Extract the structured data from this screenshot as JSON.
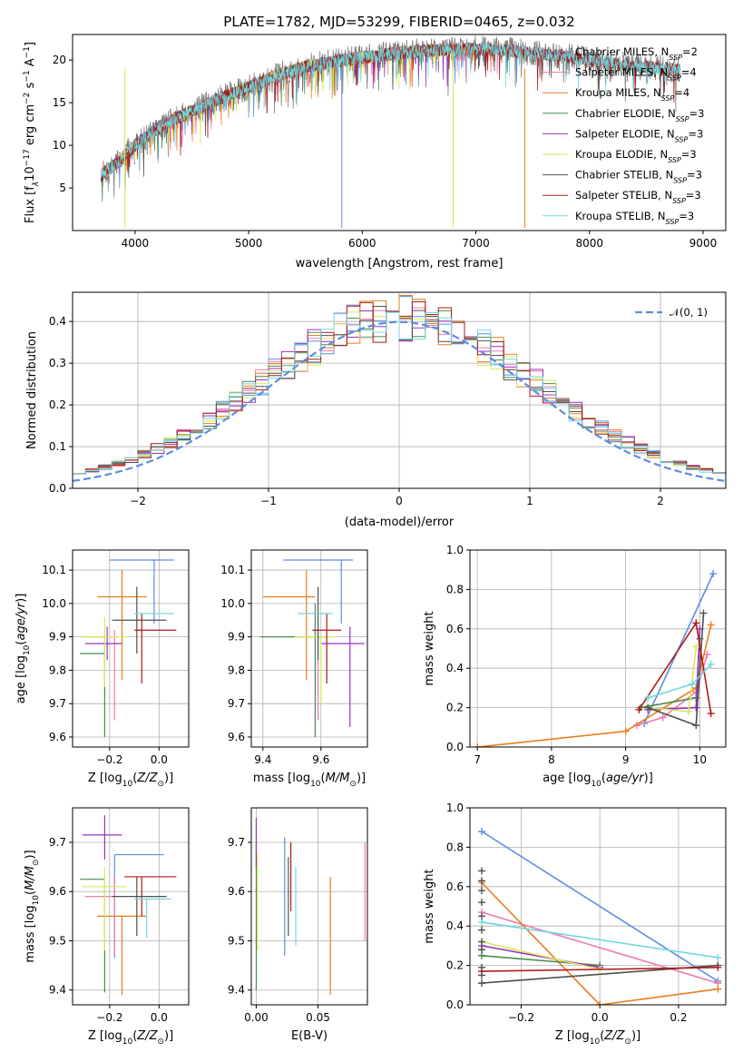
{
  "figure_title": "PLATE=1782, MJD=53299, FIBERID=0465, z=0.032",
  "colors": {
    "Chabrier MILES": "#5b8ee0",
    "Salpeter MILES": "#f07bb0",
    "Kroupa MILES": "#e87d1e",
    "Chabrier ELODIE": "#4a8a4a",
    "Salpeter ELODIE": "#9b30c0",
    "Kroupa ELODIE": "#d8e85a",
    "Chabrier STELIB": "#505050",
    "Salpeter STELIB": "#b01818",
    "Kroupa STELIB": "#70d8e0"
  },
  "chart_data": [
    {
      "id": "spectrum",
      "type": "line",
      "title": "PLATE=1782, MJD=53299, FIBERID=0465, z=0.032",
      "xlabel": "wavelength [Angstrom, rest frame]",
      "ylabel": "Flux [f_λ 10^-17 erg cm^-2 s^-1 A^-1]",
      "xlim": [
        3450,
        9200
      ],
      "ylim": [
        0,
        23
      ],
      "xticks": [
        "4000",
        "5000",
        "6000",
        "7000",
        "8000",
        "9000"
      ],
      "yticks": [
        "5",
        "10",
        "15",
        "20"
      ],
      "grid": false,
      "legend_location": "right",
      "legend": [
        "Chabrier MILES, N_SSP=2",
        "Salpeter MILES, N_SSP=4",
        "Kroupa MILES, N_SSP=4",
        "Chabrier ELODIE, N_SSP=3",
        "Salpeter ELODIE, N_SSP=3",
        "Kroupa ELODIE, N_SSP=3",
        "Chabrier STELIB, N_SSP=3",
        "Salpeter STELIB, N_SSP=3",
        "Kroupa STELIB, N_SSP=3"
      ],
      "continuum": {
        "x": [
          3700,
          3850,
          4000,
          4250,
          4500,
          4750,
          5000,
          5250,
          5500,
          5750,
          6000,
          6250,
          6500,
          6750,
          7000,
          7250,
          7500,
          7750,
          8000,
          8250,
          8500,
          8800
        ],
        "y": [
          6.5,
          8.0,
          10.0,
          12.5,
          14.0,
          15.5,
          16.8,
          18.2,
          19.2,
          19.8,
          20.3,
          20.7,
          21.0,
          21.2,
          21.3,
          21.2,
          20.8,
          20.5,
          20.0,
          19.6,
          19.2,
          18.8
        ]
      },
      "data_range": [
        3700,
        8800
      ],
      "model_ranges": {
        "MILES": [
          3700,
          7430
        ],
        "ELODIE": [
          3700,
          6800
        ],
        "STELIB": [
          3700,
          8800
        ]
      },
      "spikes": [
        {
          "x": 3910,
          "y": 0.3
        },
        {
          "x": 5820,
          "y": 0.3
        },
        {
          "x": 6800,
          "y": 0.3
        },
        {
          "x": 7430,
          "y": 0.3
        }
      ]
    },
    {
      "id": "residuals",
      "type": "line",
      "xlabel": "(data-model)/error",
      "ylabel": "Normed distribution",
      "xlim": [
        -2.5,
        2.5
      ],
      "ylim": [
        0,
        0.47
      ],
      "xticks": [
        "−2",
        "−1",
        "0",
        "1",
        "2"
      ],
      "yticks": [
        "0.0",
        "0.1",
        "0.2",
        "0.3",
        "0.4"
      ],
      "grid": true,
      "legend_location": "top-right",
      "legend": [
        "𝒩(0, 1)"
      ],
      "bin_width": 0.1,
      "reference": "N(0,1)"
    },
    {
      "id": "age-vs-Z",
      "type": "scatter",
      "xlabel": "Z [log10(Z/Z⊙)]",
      "ylabel": "age [log10(age/yr)]",
      "xlim": [
        -0.35,
        0.12
      ],
      "ylim": [
        9.57,
        10.16
      ],
      "xticks": [
        "−0.2",
        "0.0"
      ],
      "yticks": [
        "9.6",
        "9.7",
        "9.8",
        "9.9",
        "10.0",
        "10.1"
      ],
      "grid": true,
      "points": [
        {
          "model": "Chabrier MILES",
          "x": -0.02,
          "xerr": [
            0.18,
            0.08
          ],
          "y": 10.13,
          "yerr": [
            0.19,
            0.0
          ]
        },
        {
          "model": "Salpeter MILES",
          "x": -0.18,
          "xerr": [
            0.12,
            0.0
          ],
          "y": 9.9,
          "yerr": [
            0.25,
            0.02
          ]
        },
        {
          "model": "Kroupa MILES",
          "x": -0.15,
          "xerr": [
            0.1,
            0.1
          ],
          "y": 10.02,
          "yerr": [
            0.25,
            0.08
          ]
        },
        {
          "model": "Chabrier ELODIE",
          "x": -0.22,
          "xerr": [
            0.1,
            0.0
          ],
          "y": 9.85,
          "yerr": [
            0.25,
            0.05
          ]
        },
        {
          "model": "Salpeter ELODIE",
          "x": -0.21,
          "xerr": [
            0.09,
            0.06
          ],
          "y": 9.88,
          "yerr": [
            0.05,
            0.05
          ]
        },
        {
          "model": "Kroupa ELODIE",
          "x": -0.22,
          "xerr": [
            0.09,
            0.09
          ],
          "y": 9.9,
          "yerr": [
            0.15,
            0.06
          ]
        },
        {
          "model": "Chabrier STELIB",
          "x": -0.09,
          "xerr": [
            0.1,
            0.12
          ],
          "y": 9.95,
          "yerr": [
            0.1,
            0.1
          ]
        },
        {
          "model": "Salpeter STELIB",
          "x": -0.07,
          "xerr": [
            0.03,
            0.14
          ],
          "y": 9.92,
          "yerr": [
            0.16,
            0.05
          ]
        },
        {
          "model": "Kroupa STELIB",
          "x": -0.02,
          "xerr": [
            0.08,
            0.08
          ],
          "y": 9.97,
          "yerr": [
            0.0,
            0.0
          ]
        }
      ]
    },
    {
      "id": "age-vs-mass",
      "type": "scatter",
      "xlabel": "mass [log10(M/M⊙)]",
      "ylabel": "",
      "xlim": [
        9.36,
        9.76
      ],
      "ylim": [
        9.57,
        10.16
      ],
      "xticks": [
        "9.4",
        "9.6"
      ],
      "yticks": [
        "9.6",
        "9.7",
        "9.8",
        "9.9",
        "10.0",
        "10.1"
      ],
      "grid": true,
      "points": [
        {
          "model": "Chabrier MILES",
          "x": 9.67,
          "xerr": [
            0.2,
            0.04
          ],
          "y": 10.13,
          "yerr": [
            0.19,
            0.0
          ]
        },
        {
          "model": "Salpeter MILES",
          "x": 9.59,
          "xerr": [
            0.0,
            0.0
          ],
          "y": 9.9,
          "yerr": [
            0.25,
            0.02
          ]
        },
        {
          "model": "Kroupa MILES",
          "x": 9.55,
          "xerr": [
            0.15,
            0.03
          ],
          "y": 10.02,
          "yerr": [
            0.25,
            0.08
          ]
        },
        {
          "model": "Chabrier ELODIE",
          "x": 9.58,
          "xerr": [
            0.19,
            0.04
          ],
          "y": 9.9,
          "yerr": [
            0.3,
            0.1
          ]
        },
        {
          "model": "Salpeter ELODIE",
          "x": 9.7,
          "xerr": [
            0.1,
            0.05
          ],
          "y": 9.88,
          "yerr": [
            0.25,
            0.05
          ]
        },
        {
          "model": "Kroupa ELODIE",
          "x": 9.6,
          "xerr": [
            0.09,
            0.05
          ],
          "y": 9.9,
          "yerr": [
            0.2,
            0.0
          ]
        },
        {
          "model": "Chabrier STELIB",
          "x": 9.59,
          "xerr": [
            0.0,
            0.0
          ],
          "y": 9.95,
          "yerr": [
            0.12,
            0.1
          ]
        },
        {
          "model": "Salpeter STELIB",
          "x": 9.62,
          "xerr": [
            0.05,
            0.05
          ],
          "y": 9.92,
          "yerr": [
            0.16,
            0.05
          ]
        },
        {
          "model": "Kroupa STELIB",
          "x": 9.59,
          "xerr": [
            0.07,
            0.05
          ],
          "y": 9.97,
          "yerr": [
            0.0,
            0.0
          ]
        }
      ]
    },
    {
      "id": "weight-vs-age",
      "type": "line",
      "xlabel": "age [log10(age/yr)]",
      "ylabel": "mass weight",
      "xlim": [
        6.9,
        10.35
      ],
      "ylim": [
        0,
        1.0
      ],
      "xticks": [
        "7",
        "8",
        "9",
        "10"
      ],
      "yticks": [
        "0.0",
        "0.2",
        "0.4",
        "0.6",
        "0.8",
        "1.0"
      ],
      "grid": true,
      "series": [
        {
          "model": "Chabrier MILES",
          "x": [
            9.25,
            10.18
          ],
          "y": [
            0.12,
            0.88
          ]
        },
        {
          "model": "Salpeter MILES",
          "x": [
            9.15,
            9.5,
            9.95,
            10.1
          ],
          "y": [
            0.11,
            0.15,
            0.28,
            0.47
          ]
        },
        {
          "model": "Kroupa MILES",
          "x": [
            7.0,
            9.0,
            9.95,
            10.15
          ],
          "y": [
            0.0,
            0.08,
            0.3,
            0.62
          ]
        },
        {
          "model": "Chabrier ELODIE",
          "x": [
            9.2,
            9.95,
            10.0
          ],
          "y": [
            0.2,
            0.25,
            0.55
          ]
        },
        {
          "model": "Salpeter ELODIE",
          "x": [
            9.3,
            9.95,
            10.0
          ],
          "y": [
            0.19,
            0.2,
            0.6
          ]
        },
        {
          "model": "Kroupa ELODIE",
          "x": [
            9.3,
            9.85,
            9.95
          ],
          "y": [
            0.2,
            0.18,
            0.51
          ]
        },
        {
          "model": "Chabrier STELIB",
          "x": [
            9.3,
            9.95,
            10.05
          ],
          "y": [
            0.2,
            0.11,
            0.68
          ]
        },
        {
          "model": "Salpeter STELIB",
          "x": [
            9.18,
            9.95,
            10.15
          ],
          "y": [
            0.19,
            0.63,
            0.17
          ]
        },
        {
          "model": "Kroupa STELIB",
          "x": [
            9.3,
            9.9,
            10.15
          ],
          "y": [
            0.25,
            0.32,
            0.42
          ]
        }
      ]
    },
    {
      "id": "mass-vs-Z",
      "type": "scatter",
      "xlabel": "Z [log10(Z/Z⊙)]",
      "ylabel": "mass [log10(M/M⊙)]",
      "xlim": [
        -0.35,
        0.12
      ],
      "ylim": [
        9.37,
        9.77
      ],
      "xticks": [
        "−0.2",
        "0.0"
      ],
      "yticks": [
        "9.4",
        "9.5",
        "9.6",
        "9.7"
      ],
      "grid": true,
      "points": [
        {
          "model": "Chabrier MILES",
          "x": -0.18,
          "xerr": [
            0.0,
            0.2
          ],
          "y": 9.675,
          "yerr": [
            0.21,
            0.0
          ]
        },
        {
          "model": "Salpeter MILES",
          "x": -0.18,
          "xerr": [
            0.12,
            0.0
          ],
          "y": 9.59,
          "yerr": [
            0.12,
            0.04
          ]
        },
        {
          "model": "Kroupa MILES",
          "x": -0.15,
          "xerr": [
            0.1,
            0.1
          ],
          "y": 9.55,
          "yerr": [
            0.16,
            0.0
          ]
        },
        {
          "model": "Chabrier ELODIE",
          "x": -0.22,
          "xerr": [
            0.1,
            0.0
          ],
          "y": 9.625,
          "yerr": [
            0.23,
            0.0
          ]
        },
        {
          "model": "Salpeter ELODIE",
          "x": -0.22,
          "xerr": [
            0.09,
            0.07
          ],
          "y": 9.715,
          "yerr": [
            0.05,
            0.04
          ]
        },
        {
          "model": "Kroupa ELODIE",
          "x": -0.22,
          "xerr": [
            0.09,
            0.09
          ],
          "y": 9.61,
          "yerr": [
            0.13,
            0.04
          ]
        },
        {
          "model": "Chabrier STELIB",
          "x": -0.09,
          "xerr": [
            0.1,
            0.12
          ],
          "y": 9.59,
          "yerr": [
            0.08,
            0.04
          ]
        },
        {
          "model": "Salpeter STELIB",
          "x": -0.07,
          "xerr": [
            0.07,
            0.14
          ],
          "y": 9.63,
          "yerr": [
            0.08,
            0.0
          ]
        },
        {
          "model": "Kroupa STELIB",
          "x": -0.05,
          "xerr": [
            0.05,
            0.1
          ],
          "y": 9.585,
          "yerr": [
            0.08,
            0.0
          ]
        }
      ]
    },
    {
      "id": "mass-vs-ebv",
      "type": "scatter",
      "xlabel": "E(B-V)",
      "ylabel": "",
      "xlim": [
        -0.004,
        0.09
      ],
      "ylim": [
        9.37,
        9.77
      ],
      "xticks": [
        "0.00",
        "0.05"
      ],
      "yticks": [
        "9.4",
        "9.5",
        "9.6",
        "9.7"
      ],
      "grid": true,
      "points": [
        {
          "model": "Chabrier MILES",
          "x": 0.023,
          "xerr": [
            0,
            0
          ],
          "y": 9.59,
          "yerr": [
            0.12,
            0.12
          ]
        },
        {
          "model": "Salpeter MILES",
          "x": 0.088,
          "xerr": [
            0,
            0
          ],
          "y": 9.6,
          "yerr": [
            0.1,
            0.1
          ]
        },
        {
          "model": "Kroupa MILES",
          "x": 0.06,
          "xerr": [
            0,
            0
          ],
          "y": 9.51,
          "yerr": [
            0.12,
            0.12
          ]
        },
        {
          "model": "Chabrier ELODIE",
          "x": 0.0,
          "xerr": [
            0,
            0
          ],
          "y": 9.55,
          "yerr": [
            0.15,
            0.15
          ]
        },
        {
          "model": "Salpeter ELODIE",
          "x": 0.0,
          "xerr": [
            0,
            0
          ],
          "y": 9.7,
          "yerr": [
            0.05,
            0.05
          ]
        },
        {
          "model": "Kroupa ELODIE",
          "x": 0.001,
          "xerr": [
            0,
            0
          ],
          "y": 9.58,
          "yerr": [
            0.1,
            0.1
          ]
        },
        {
          "model": "Chabrier STELIB",
          "x": 0.026,
          "xerr": [
            0,
            0
          ],
          "y": 9.59,
          "yerr": [
            0.08,
            0.08
          ]
        },
        {
          "model": "Salpeter STELIB",
          "x": 0.028,
          "xerr": [
            0,
            0
          ],
          "y": 9.63,
          "yerr": [
            0.07,
            0.07
          ]
        },
        {
          "model": "Kroupa STELIB",
          "x": 0.032,
          "xerr": [
            0,
            0
          ],
          "y": 9.57,
          "yerr": [
            0.08,
            0.08
          ]
        }
      ]
    },
    {
      "id": "weight-vs-Z",
      "type": "line",
      "xlabel": "Z [log10(Z/Z⊙)]",
      "ylabel": "mass weight",
      "xlim": [
        -0.33,
        0.32
      ],
      "ylim": [
        0,
        1.0
      ],
      "xticks": [
        "−0.2",
        "0.0",
        "0.2"
      ],
      "yticks": [
        "0.0",
        "0.2",
        "0.4",
        "0.6",
        "0.8",
        "1.0"
      ],
      "grid": true,
      "series": [
        {
          "model": "Chabrier MILES",
          "x": [
            -0.3,
            0.3
          ],
          "y": [
            0.88,
            0.12
          ]
        },
        {
          "model": "Salpeter MILES",
          "x": [
            -0.3,
            0.3
          ],
          "y": [
            0.47,
            0.11
          ]
        },
        {
          "model": "Kroupa MILES",
          "x": [
            -0.3,
            0.0,
            0.3
          ],
          "y": [
            0.62,
            0.0,
            0.08
          ]
        },
        {
          "model": "Chabrier ELODIE",
          "x": [
            -0.3,
            0.0
          ],
          "y": [
            0.25,
            0.2
          ]
        },
        {
          "model": "Salpeter ELODIE",
          "x": [
            -0.3,
            0.0
          ],
          "y": [
            0.3,
            0.19
          ]
        },
        {
          "model": "Kroupa ELODIE",
          "x": [
            -0.3,
            0.0
          ],
          "y": [
            0.32,
            0.18
          ]
        },
        {
          "model": "Chabrier STELIB",
          "x": [
            -0.3,
            0.3
          ],
          "y": [
            0.11,
            0.2
          ]
        },
        {
          "model": "Salpeter STELIB",
          "x": [
            -0.3,
            0.3
          ],
          "y": [
            0.17,
            0.19
          ]
        },
        {
          "model": "Kroupa STELIB",
          "x": [
            -0.3,
            0.3
          ],
          "y": [
            0.42,
            0.24
          ]
        }
      ],
      "stacked_markers": {
        "x": -0.3,
        "y": [
          0.15,
          0.19,
          0.28,
          0.32,
          0.38,
          0.45,
          0.52,
          0.58,
          0.63,
          0.68
        ]
      }
    }
  ]
}
